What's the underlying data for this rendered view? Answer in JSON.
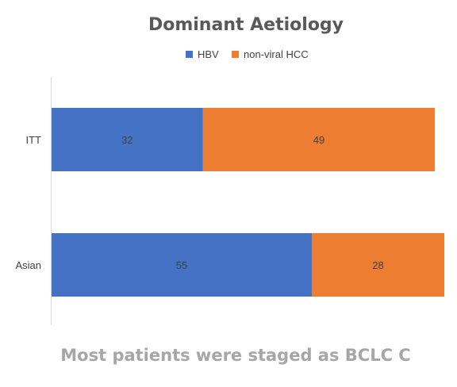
{
  "chart_data": {
    "type": "bar",
    "orientation": "horizontal",
    "stacked": true,
    "title": "Dominant Aetiology",
    "xlabel": "",
    "ylabel": "",
    "categories": [
      "ITT",
      "Asian"
    ],
    "series": [
      {
        "name": "HBV",
        "color": "#4472c4",
        "values": [
          32,
          55
        ]
      },
      {
        "name": "non-viral HCC",
        "color": "#ed7d31",
        "values": [
          49,
          28
        ]
      }
    ],
    "xlim": [
      0,
      83
    ],
    "legend": "top-center",
    "grid": false
  },
  "caption": "Most patients were staged as BCLC C"
}
